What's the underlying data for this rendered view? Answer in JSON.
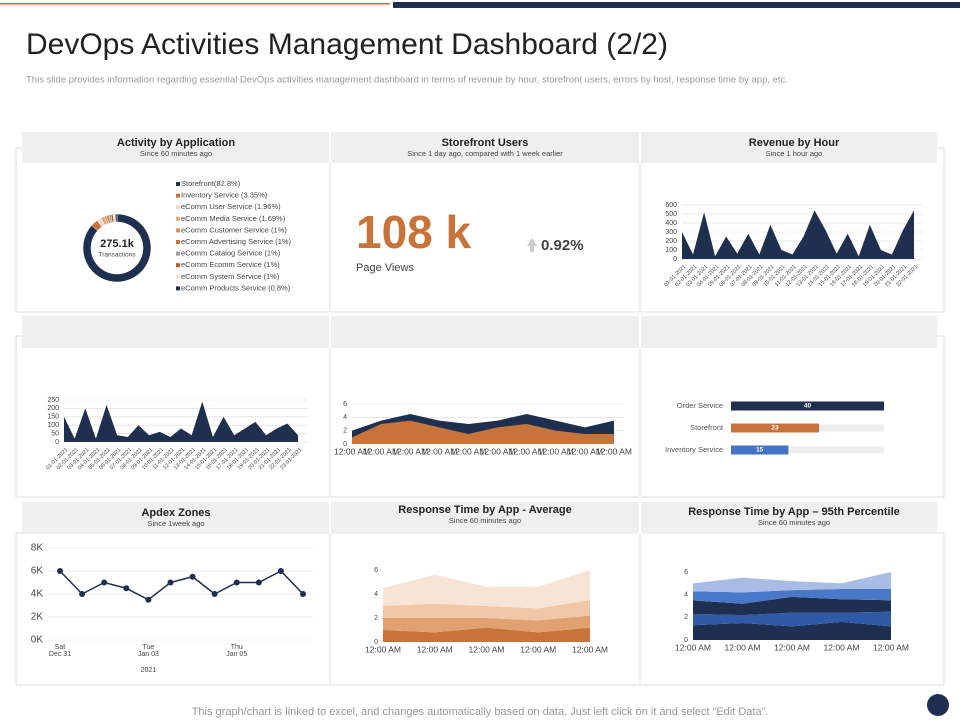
{
  "title": "DevOps Activities Management Dashboard (2/2)",
  "subtitle": "This slide provides information regarding essential DevOps activities management  dashboard in terms of revenue by hour, storefront users, errors by host, response time by app, etc.",
  "footer": "This graph/chart is linked to excel, and changes automatically based on data. Just left click on it and select “Edit Data”.",
  "chart_data": [
    {
      "type": "donut",
      "title": "Activity by Application",
      "subtitle": "Since 60 minutes ago",
      "center_value": "275.1k",
      "center_label": "Transactions",
      "categories": [
        "Storefront(82.8%)",
        "Inventory Service (3.35%)",
        "eComm User Service (1.96%)",
        "eComm Media Service  (1.69%)",
        "eComm Customer Service (1%)",
        "eComm Advertising Service (1%)",
        "eComm Catalog  Service (1%)",
        "eComm Ecomm Service (1%)",
        "eComm System Service (1%)",
        "eComm Products Service (0.8%)"
      ],
      "values": [
        82.8,
        3.35,
        1.96,
        1.69,
        1,
        1,
        1,
        1,
        1,
        0.8
      ],
      "colors": [
        "#1f2f4f",
        "#c8733a",
        "#f2d9c6",
        "#e8a77a",
        "#d98c55",
        "#c8733a",
        "#a0a0a0",
        "#b35f2a",
        "#f5e4d6",
        "#1f2f4f"
      ]
    },
    {
      "type": "kpi",
      "title": "Storefront Users",
      "subtitle": "Since 1 day ago, compared with 1 week earlier",
      "value_label": "108 k",
      "caption": "Page Views",
      "change": "0.92%",
      "color": "#c8733a"
    },
    {
      "type": "area",
      "title": "Revenue by Hour",
      "subtitle": "Since 1 hour ago",
      "categories": [
        "01-01-2021",
        "02-01-2021",
        "03-01-2021",
        "04-01-2021",
        "05-01-2021",
        "06-01-2021",
        "07-01-2021",
        "08-01-2021",
        "09-01-2021",
        "10-01-2021",
        "11-01-2021",
        "12-01-2021",
        "13-01-2021",
        "14-01-2021",
        "15-01-2021",
        "16-01-2021",
        "17-01-2021",
        "18-01-2021",
        "19-01-2021",
        "20-01-2021",
        "21-01-2021",
        "22-01-2021"
      ],
      "series": [
        {
          "color": "#1f2f4f",
          "values": [
            300,
            50,
            520,
            30,
            250,
            60,
            280,
            50,
            380,
            100,
            50,
            250,
            540,
            320,
            60,
            280,
            30,
            380,
            100,
            50,
            320,
            540
          ]
        }
      ],
      "ylim": [
        0,
        600
      ],
      "yticks": [
        0,
        100,
        200,
        300,
        400,
        500,
        600
      ],
      "grid": true
    },
    {
      "type": "area",
      "categories": [
        "01-01-2021",
        "02-01-2021",
        "03-01-2021",
        "04-01-2021",
        "05-01-2021",
        "06-01-2021",
        "07-01-2021",
        "08-01-2021",
        "09-01-2021",
        "10-01-2021",
        "11-01-2021",
        "12-01-2021",
        "13-01-2021",
        "14-01-2021",
        "15-01-2021",
        "16-01-2021",
        "17-01-2021",
        "18-01-2021",
        "19-01-2021",
        "20-01-2021",
        "21-01-2021",
        "22-01-2021",
        "23-01-2021"
      ],
      "series": [
        {
          "color": "#1f2f4f",
          "values": [
            150,
            20,
            200,
            20,
            220,
            40,
            30,
            100,
            40,
            60,
            30,
            80,
            40,
            240,
            30,
            150,
            40,
            80,
            120,
            40,
            80,
            110,
            40
          ]
        }
      ],
      "ylim": [
        0,
        250
      ],
      "yticks": [
        0,
        50,
        100,
        150,
        200,
        250
      ],
      "grid": true
    },
    {
      "type": "area",
      "categories": [
        "12:00 AM",
        "12:00 AM",
        "12:00 AM",
        "12:00 AM",
        "12:00 AM",
        "12:00 AM",
        "12:00 AM",
        "12:00 AM",
        "12:00 AM",
        "12:00 AM"
      ],
      "series": [
        {
          "color": "#1f2f4f",
          "values": [
            2,
            3.5,
            4.5,
            3.5,
            3,
            3.5,
            4.5,
            3.5,
            2.5,
            3.5
          ]
        },
        {
          "color": "#c8733a",
          "values": [
            1,
            3,
            3.5,
            2.5,
            1.5,
            2.5,
            3,
            2,
            1.5,
            1.5
          ]
        }
      ],
      "ylim": [
        0,
        6
      ],
      "yticks": [
        0,
        2,
        4,
        6
      ],
      "grid": true
    },
    {
      "type": "hbar",
      "categories": [
        "Order Service",
        "Storefront",
        "Inventory Service"
      ],
      "values": [
        40,
        23,
        15
      ],
      "colors": [
        "#1f2f4f",
        "#c8733a",
        "#4472c4"
      ],
      "xlim": [
        0,
        40
      ]
    },
    {
      "type": "line",
      "title": "Apdex Zones",
      "subtitle": "Since 1week ago",
      "categories": [
        "Sat",
        null,
        null,
        null,
        "Tue",
        null,
        null,
        null,
        "Thu",
        null,
        null,
        null
      ],
      "sublabels": [
        "Dec 31",
        null,
        null,
        null,
        "Jan 03",
        null,
        null,
        null,
        "Jan 05",
        null,
        null,
        null
      ],
      "xlabel": "2021",
      "series": [
        {
          "color": "#1f2f4f",
          "values": [
            6000,
            4000,
            5000,
            4500,
            3500,
            5000,
            5500,
            4000,
            5000,
            5000,
            6000,
            4000
          ]
        }
      ],
      "ylim": [
        0,
        8000
      ],
      "yticks": [
        {
          "value": 0,
          "label": "0K"
        },
        {
          "value": 2000,
          "label": "2K"
        },
        {
          "value": 4000,
          "label": "4K"
        },
        {
          "value": 6000,
          "label": "6K"
        },
        {
          "value": 8000,
          "label": "8K"
        }
      ],
      "grid": true
    },
    {
      "type": "stacked-area",
      "title": "Response Time by App - Average",
      "subtitle": "Since 60 minutes ago",
      "categories": [
        "12:00 AM",
        "12:00 AM",
        "12:00 AM",
        "12:00 AM",
        "12:00 AM"
      ],
      "series": [
        {
          "color": "#c8733a",
          "values": [
            1,
            0.8,
            1.2,
            0.8,
            1.2
          ]
        },
        {
          "color": "#e0a070",
          "values": [
            1,
            1.2,
            0.8,
            1,
            1
          ]
        },
        {
          "color": "#f0c8a8",
          "values": [
            1,
            1.2,
            1,
            1,
            1.3
          ]
        },
        {
          "color": "#f8e4d4",
          "values": [
            1.5,
            2.4,
            1.6,
            1.8,
            2.5
          ]
        }
      ],
      "ylim": [
        0,
        6
      ],
      "yticks": [
        0,
        2,
        4,
        6
      ],
      "grid": false
    },
    {
      "type": "stacked-area",
      "title": "Response Time by App – 95th Percentile",
      "subtitle": "Since 60 minutes ago",
      "categories": [
        "12:00 AM",
        "12:00 AM",
        "12:00 AM",
        "12:00 AM",
        "12:00 AM"
      ],
      "series": [
        {
          "color": "#1f2f4f",
          "values": [
            1.3,
            1.5,
            1.2,
            1.6,
            1.2
          ]
        },
        {
          "color": "#2e5aa8",
          "values": [
            1,
            0.7,
            1.2,
            0.8,
            1.3
          ]
        },
        {
          "color": "#1f2f4f",
          "values": [
            1.2,
            1,
            1.4,
            1.2,
            1
          ]
        },
        {
          "color": "#4a78c8",
          "values": [
            0.8,
            1,
            0.6,
            0.9,
            1
          ]
        },
        {
          "color": "#a8bce6",
          "values": [
            0.7,
            1.3,
            0.8,
            0.5,
            1.5
          ]
        }
      ],
      "ylim": [
        0,
        6
      ],
      "yticks": [
        0,
        2,
        4,
        6
      ],
      "grid": false
    }
  ]
}
